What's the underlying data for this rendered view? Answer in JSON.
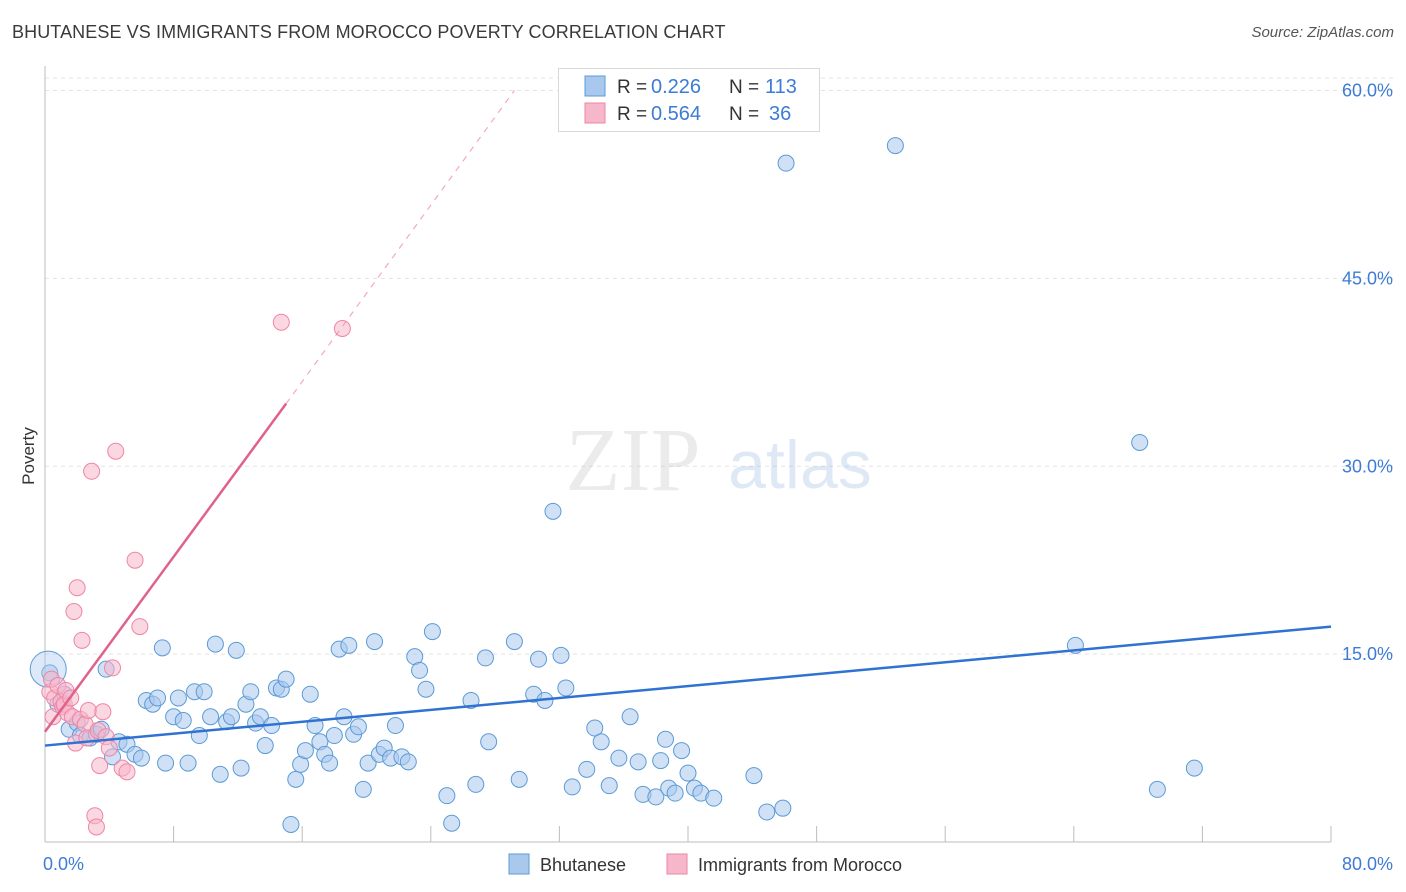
{
  "header": {
    "title": "BHUTANESE VS IMMIGRANTS FROM MOROCCO POVERTY CORRELATION CHART",
    "source": "Source: ZipAtlas.com"
  },
  "watermark": {
    "part1": "ZIP",
    "part2": "atlas"
  },
  "colors": {
    "blue": "#5b9bd5",
    "blue_line": "#2f72d1",
    "blue_fill": "#a9c8ee",
    "pink": "#ee85a6",
    "pink_line": "#e0628c",
    "pink_fill": "#f7b7cb",
    "axis_label": "#3d7bd6",
    "grid": "#e3e3e3"
  },
  "legend": {
    "rows": [
      {
        "r_label": "R = ",
        "r_value": "0.226",
        "n_label": "N = ",
        "n_value": "113",
        "series": "blue"
      },
      {
        "r_label": "R = ",
        "r_value": "0.564",
        "n_label": "N = ",
        "n_value": "36",
        "series": "pink"
      }
    ],
    "bottom": [
      "Bhutanese",
      "Immigrants from Morocco"
    ]
  },
  "chart_data": {
    "type": "scatter",
    "title": "BHUTANESE VS IMMIGRANTS FROM MOROCCO POVERTY CORRELATION CHART",
    "xlabel": "",
    "ylabel": "Poverty",
    "xlim": [
      0,
      80
    ],
    "ylim": [
      0,
      61
    ],
    "x_tick_labels": [
      "0.0%",
      "80.0%"
    ],
    "y_ticks": [
      15,
      30,
      45,
      60
    ],
    "y_tick_labels": [
      "15.0%",
      "30.0%",
      "45.0%",
      "60.0%"
    ],
    "series": [
      {
        "name": "Bhutanese",
        "color": "blue",
        "trend": {
          "x0": 0,
          "y0": 7.7,
          "x1": 80,
          "y1": 17.2
        },
        "points": [
          [
            0.3,
            13.5
          ],
          [
            0.8,
            11
          ],
          [
            1.2,
            11.8
          ],
          [
            1.5,
            9
          ],
          [
            2,
            9.5
          ],
          [
            2.2,
            8.5
          ],
          [
            2.8,
            8.3
          ],
          [
            3.2,
            8.6
          ],
          [
            3.5,
            9
          ],
          [
            3.8,
            13.8
          ],
          [
            4.2,
            6.8
          ],
          [
            4.6,
            8
          ],
          [
            5.1,
            7.8
          ],
          [
            5.6,
            7
          ],
          [
            6,
            6.7
          ],
          [
            6.3,
            11.3
          ],
          [
            6.7,
            11
          ],
          [
            7,
            11.5
          ],
          [
            7.3,
            15.5
          ],
          [
            7.5,
            6.3
          ],
          [
            8,
            10
          ],
          [
            8.3,
            11.5
          ],
          [
            8.6,
            9.7
          ],
          [
            8.9,
            6.3
          ],
          [
            9.3,
            12
          ],
          [
            9.6,
            8.5
          ],
          [
            9.9,
            12
          ],
          [
            10.3,
            10
          ],
          [
            10.6,
            15.8
          ],
          [
            10.9,
            5.4
          ],
          [
            11.3,
            9.6
          ],
          [
            11.6,
            10
          ],
          [
            11.9,
            15.3
          ],
          [
            12.2,
            5.9
          ],
          [
            12.5,
            11
          ],
          [
            12.8,
            12
          ],
          [
            13.1,
            9.5
          ],
          [
            13.4,
            10
          ],
          [
            13.7,
            7.7
          ],
          [
            14.1,
            9.3
          ],
          [
            14.4,
            12.3
          ],
          [
            14.7,
            12.2
          ],
          [
            15,
            13
          ],
          [
            15.3,
            1.4
          ],
          [
            15.6,
            5
          ],
          [
            15.9,
            6.2
          ],
          [
            16.2,
            7.3
          ],
          [
            16.5,
            11.8
          ],
          [
            16.8,
            9.3
          ],
          [
            17.1,
            8
          ],
          [
            17.4,
            7
          ],
          [
            17.7,
            6.3
          ],
          [
            18,
            8.5
          ],
          [
            18.3,
            15.4
          ],
          [
            18.6,
            10
          ],
          [
            18.9,
            15.7
          ],
          [
            19.2,
            8.6
          ],
          [
            19.5,
            9.2
          ],
          [
            19.8,
            4.2
          ],
          [
            20.1,
            6.3
          ],
          [
            20.5,
            16
          ],
          [
            20.8,
            7
          ],
          [
            21.1,
            7.5
          ],
          [
            21.5,
            6.7
          ],
          [
            21.8,
            9.3
          ],
          [
            22.2,
            6.8
          ],
          [
            22.6,
            6.4
          ],
          [
            23,
            14.8
          ],
          [
            23.3,
            13.7
          ],
          [
            23.7,
            12.2
          ],
          [
            24.1,
            16.8
          ],
          [
            25,
            3.7
          ],
          [
            25.3,
            1.5
          ],
          [
            26.5,
            11.3
          ],
          [
            26.8,
            4.6
          ],
          [
            27.4,
            14.7
          ],
          [
            27.6,
            8
          ],
          [
            29.2,
            16
          ],
          [
            29.5,
            5
          ],
          [
            30.4,
            11.8
          ],
          [
            30.7,
            14.6
          ],
          [
            31.1,
            11.3
          ],
          [
            31.6,
            26.4
          ],
          [
            32.1,
            14.9
          ],
          [
            32.4,
            12.3
          ],
          [
            32.8,
            4.4
          ],
          [
            33.7,
            5.8
          ],
          [
            34.2,
            9.1
          ],
          [
            34.6,
            8
          ],
          [
            35.1,
            4.5
          ],
          [
            35.7,
            6.7
          ],
          [
            36.4,
            10
          ],
          [
            36.9,
            6.4
          ],
          [
            37.2,
            3.8
          ],
          [
            38,
            3.6
          ],
          [
            38.3,
            6.5
          ],
          [
            38.6,
            8.2
          ],
          [
            38.8,
            4.3
          ],
          [
            39.2,
            3.9
          ],
          [
            39.6,
            7.3
          ],
          [
            40,
            5.5
          ],
          [
            40.4,
            4.3
          ],
          [
            40.8,
            3.9
          ],
          [
            41.6,
            3.5
          ],
          [
            44.1,
            5.3
          ],
          [
            44.9,
            2.4
          ],
          [
            45.9,
            2.7
          ],
          [
            46.1,
            54.2
          ],
          [
            52.9,
            55.6
          ],
          [
            64.1,
            15.7
          ],
          [
            68.1,
            31.9
          ],
          [
            69.2,
            4.2
          ],
          [
            71.5,
            5.9
          ]
        ]
      },
      {
        "name": "Immigrants from Morocco",
        "color": "pink",
        "trend": {
          "x0": 0,
          "y0": 8.8,
          "x1": 15,
          "y1": 35
        },
        "trend_ext": {
          "x0": 15,
          "y0": 35,
          "x1": 29.2,
          "y1": 60
        },
        "points": [
          [
            0.3,
            12
          ],
          [
            0.4,
            13
          ],
          [
            0.5,
            10
          ],
          [
            0.6,
            11.5
          ],
          [
            0.8,
            12.5
          ],
          [
            1,
            11.2
          ],
          [
            1.1,
            10.8
          ],
          [
            1.2,
            11
          ],
          [
            1.3,
            12.1
          ],
          [
            1.4,
            10.3
          ],
          [
            1.6,
            11.5
          ],
          [
            1.7,
            10
          ],
          [
            1.8,
            18.4
          ],
          [
            1.9,
            7.9
          ],
          [
            2,
            20.3
          ],
          [
            2.2,
            9.8
          ],
          [
            2.3,
            16.1
          ],
          [
            2.5,
            9.4
          ],
          [
            2.6,
            8.3
          ],
          [
            2.7,
            10.5
          ],
          [
            2.9,
            29.6
          ],
          [
            3.1,
            2.1
          ],
          [
            3.2,
            1.2
          ],
          [
            3.3,
            8.9
          ],
          [
            3.4,
            6.1
          ],
          [
            3.6,
            10.4
          ],
          [
            3.8,
            8.4
          ],
          [
            4,
            7.5
          ],
          [
            4.2,
            13.9
          ],
          [
            4.4,
            31.2
          ],
          [
            4.8,
            5.9
          ],
          [
            5.1,
            5.6
          ],
          [
            5.6,
            22.5
          ],
          [
            5.9,
            17.2
          ],
          [
            14.7,
            41.5
          ],
          [
            18.5,
            41
          ]
        ]
      }
    ]
  }
}
